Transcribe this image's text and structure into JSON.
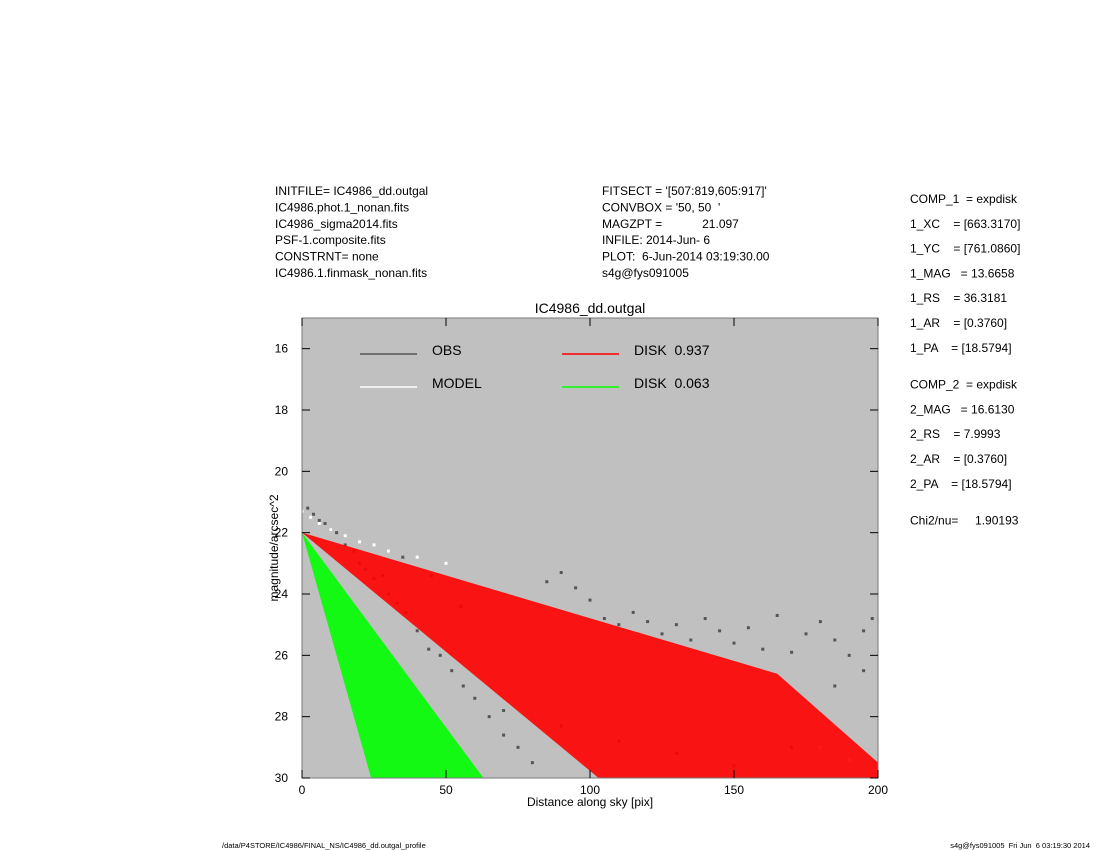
{
  "header": {
    "left": [
      "INITFILE= IC4986_dd.outgal",
      "IC4986.phot.1_nonan.fits",
      "IC4986_sigma2014.fits",
      "PSF-1.composite.fits",
      "CONSTRNT= none",
      "IC4986.1.finmask_nonan.fits"
    ],
    "center": [
      "FITSECT = '[507:819,605:917]'",
      "CONVBOX = '50, 50  '",
      "MAGZPT =            21.097",
      "INFILE: 2014-Jun- 6",
      "PLOT:  6-Jun-2014 03:19:30.00",
      "s4g@fys091005"
    ],
    "params": [
      [
        "COMP_1  = expdisk",
        "1_XC    = [663.3170]",
        "1_YC    = [761.0860]",
        "1_MAG   = 13.6658",
        "1_RS    = 36.3181",
        "1_AR    = [0.3760]",
        "1_PA    = [18.5794]"
      ],
      [
        "COMP_2  = expdisk",
        "2_MAG   = 16.6130",
        "2_RS    = 7.9993",
        "2_AR    = [0.3760]",
        "2_PA    = [18.5794]"
      ],
      [
        "Chi2/nu=     1.90193"
      ]
    ]
  },
  "footer": {
    "left": "/data/P4STORE/IC4986/FINAL_NS/IC4986_dd.outgal_profile",
    "right": "s4g@fys091005  Fri Jun  6 03:19:30 2014"
  },
  "chart_data": {
    "type": "scatter",
    "title": "IC4986_dd.outgal",
    "x_label": "Distance along sky [pix]",
    "y_label": "magnitude/arcsec^2",
    "xlim": [
      0,
      200
    ],
    "xticks": [
      0,
      50,
      100,
      150,
      200
    ],
    "ylim": [
      30,
      15
    ],
    "yticks": [
      16,
      18,
      20,
      22,
      24,
      26,
      28,
      30
    ],
    "background": "#c0c0c0",
    "series": [
      {
        "name": "OBS",
        "color": "#555555",
        "kind": "points",
        "x": [
          2,
          4,
          6,
          8,
          10,
          12,
          15,
          18,
          20,
          22,
          25,
          28,
          30,
          33,
          36,
          40,
          44,
          48,
          52,
          56,
          60,
          65,
          70,
          75,
          80,
          85,
          90,
          95,
          100,
          105,
          110,
          115,
          120,
          125,
          130,
          135,
          140,
          145,
          150,
          155,
          160,
          165,
          170,
          175,
          180,
          185,
          190,
          195,
          198,
          35,
          45,
          55,
          70,
          90,
          110,
          130,
          150,
          170,
          185,
          195
        ],
        "values": [
          21.2,
          21.4,
          21.6,
          21.7,
          21.9,
          22.0,
          22.4,
          22.6,
          23.0,
          23.2,
          23.5,
          23.4,
          24.0,
          24.3,
          24.6,
          25.2,
          25.8,
          26.0,
          26.5,
          27.0,
          27.4,
          28.0,
          28.6,
          29.0,
          29.5,
          23.6,
          23.3,
          23.8,
          24.2,
          24.8,
          25.0,
          24.6,
          24.9,
          25.3,
          25.0,
          25.5,
          24.8,
          25.2,
          25.6,
          25.1,
          25.8,
          24.7,
          25.9,
          25.3,
          24.9,
          25.5,
          26.0,
          25.2,
          24.8,
          22.8,
          23.4,
          24.4,
          27.8,
          28.3,
          28.8,
          29.2,
          29.6,
          29.0,
          27.0,
          26.5
        ]
      },
      {
        "name": "MODEL",
        "color": "#ffffff",
        "kind": "points",
        "x": [
          0,
          3,
          6,
          10,
          15,
          20,
          25,
          30,
          40,
          50,
          180,
          190,
          200
        ],
        "values": [
          21.3,
          21.5,
          21.7,
          21.9,
          22.1,
          22.3,
          22.4,
          22.6,
          22.8,
          23.0,
          29.0,
          29.4,
          29.8
        ]
      },
      {
        "name": "DISK  0.937",
        "color": "#ff0000",
        "kind": "area",
        "x": [
          0,
          165,
          200,
          200,
          103
        ],
        "values": [
          22,
          26.6,
          29.5,
          30,
          30
        ]
      },
      {
        "name": "DISK  0.063",
        "color": "#00ff00",
        "kind": "area",
        "x": [
          0,
          63,
          24
        ],
        "values": [
          22,
          30,
          30
        ]
      }
    ]
  }
}
